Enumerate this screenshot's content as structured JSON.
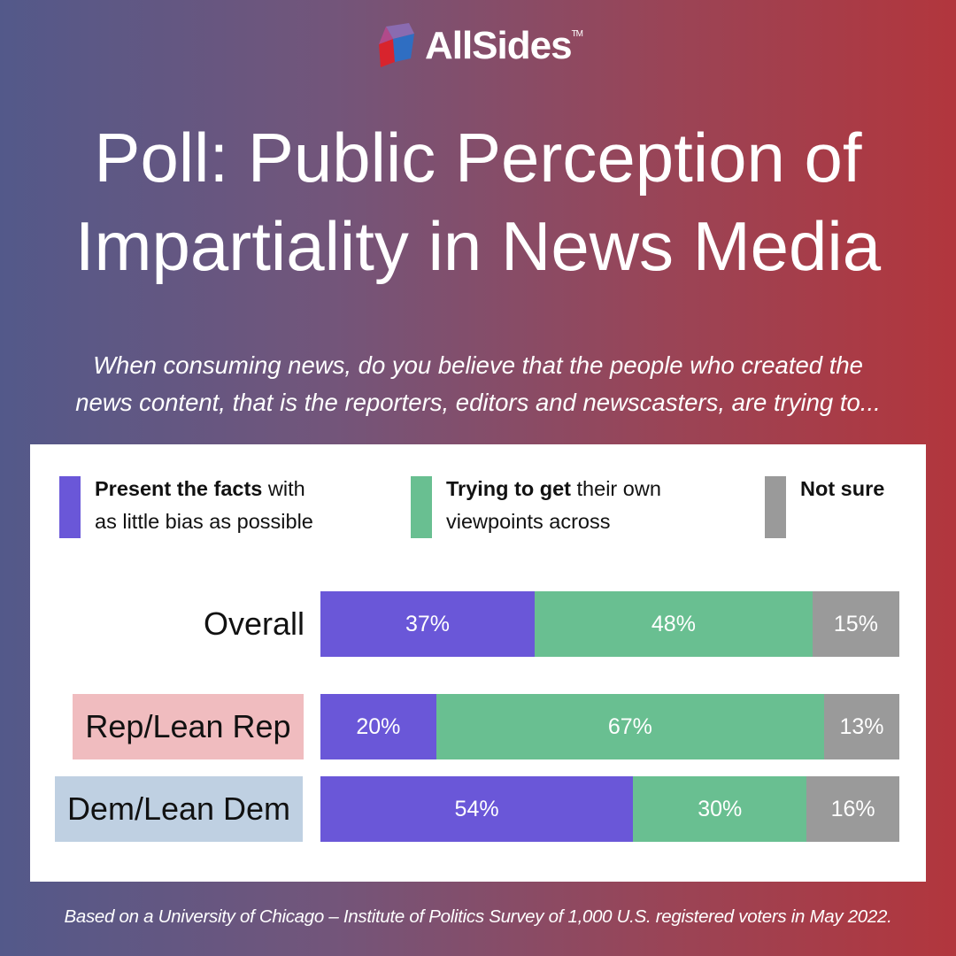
{
  "brand": {
    "name": "AllSides",
    "tm": "TM"
  },
  "title_lines": [
    "Poll: Public Perception of",
    "Impartiality in News Media"
  ],
  "question_lines": [
    "When consuming news, do you believe that the people who created the",
    "news content, that is the reporters, editors and newscasters, are trying to..."
  ],
  "legend": [
    {
      "bold": "Present the facts",
      "rest1": " with",
      "line2": "as little bias as possible",
      "color": "#6a57d8"
    },
    {
      "bold": "Trying to get",
      "rest1": " their own",
      "line2": "viewpoints across",
      "color": "#69bf91"
    },
    {
      "bold": "Not sure",
      "rest1": "",
      "line2": "",
      "color": "#9a9a9a"
    }
  ],
  "colors": {
    "rep_label_bg": "#f0bcbf",
    "dem_label_bg": "#bfd0e2"
  },
  "chart_data": {
    "type": "bar",
    "orientation": "horizontal",
    "stacked": true,
    "categories": [
      "Overall",
      "Rep/Lean Rep",
      "Dem/Lean Dem"
    ],
    "series": [
      {
        "name": "Present the facts with as little bias as possible",
        "values": [
          37,
          20,
          54
        ],
        "labels": [
          "37%",
          "20%",
          "54%"
        ]
      },
      {
        "name": "Trying to get their own viewpoints across",
        "values": [
          48,
          67,
          30
        ],
        "labels": [
          "48%",
          "67%",
          "30%"
        ]
      },
      {
        "name": "Not sure",
        "values": [
          15,
          13,
          16
        ],
        "labels": [
          "15%",
          "13%",
          "16%"
        ]
      }
    ],
    "xlim": [
      0,
      100
    ],
    "legend_position": "top"
  },
  "footnote": "Based on a University of Chicago – Institute of Politics Survey of 1,000 U.S. registered voters in May 2022."
}
